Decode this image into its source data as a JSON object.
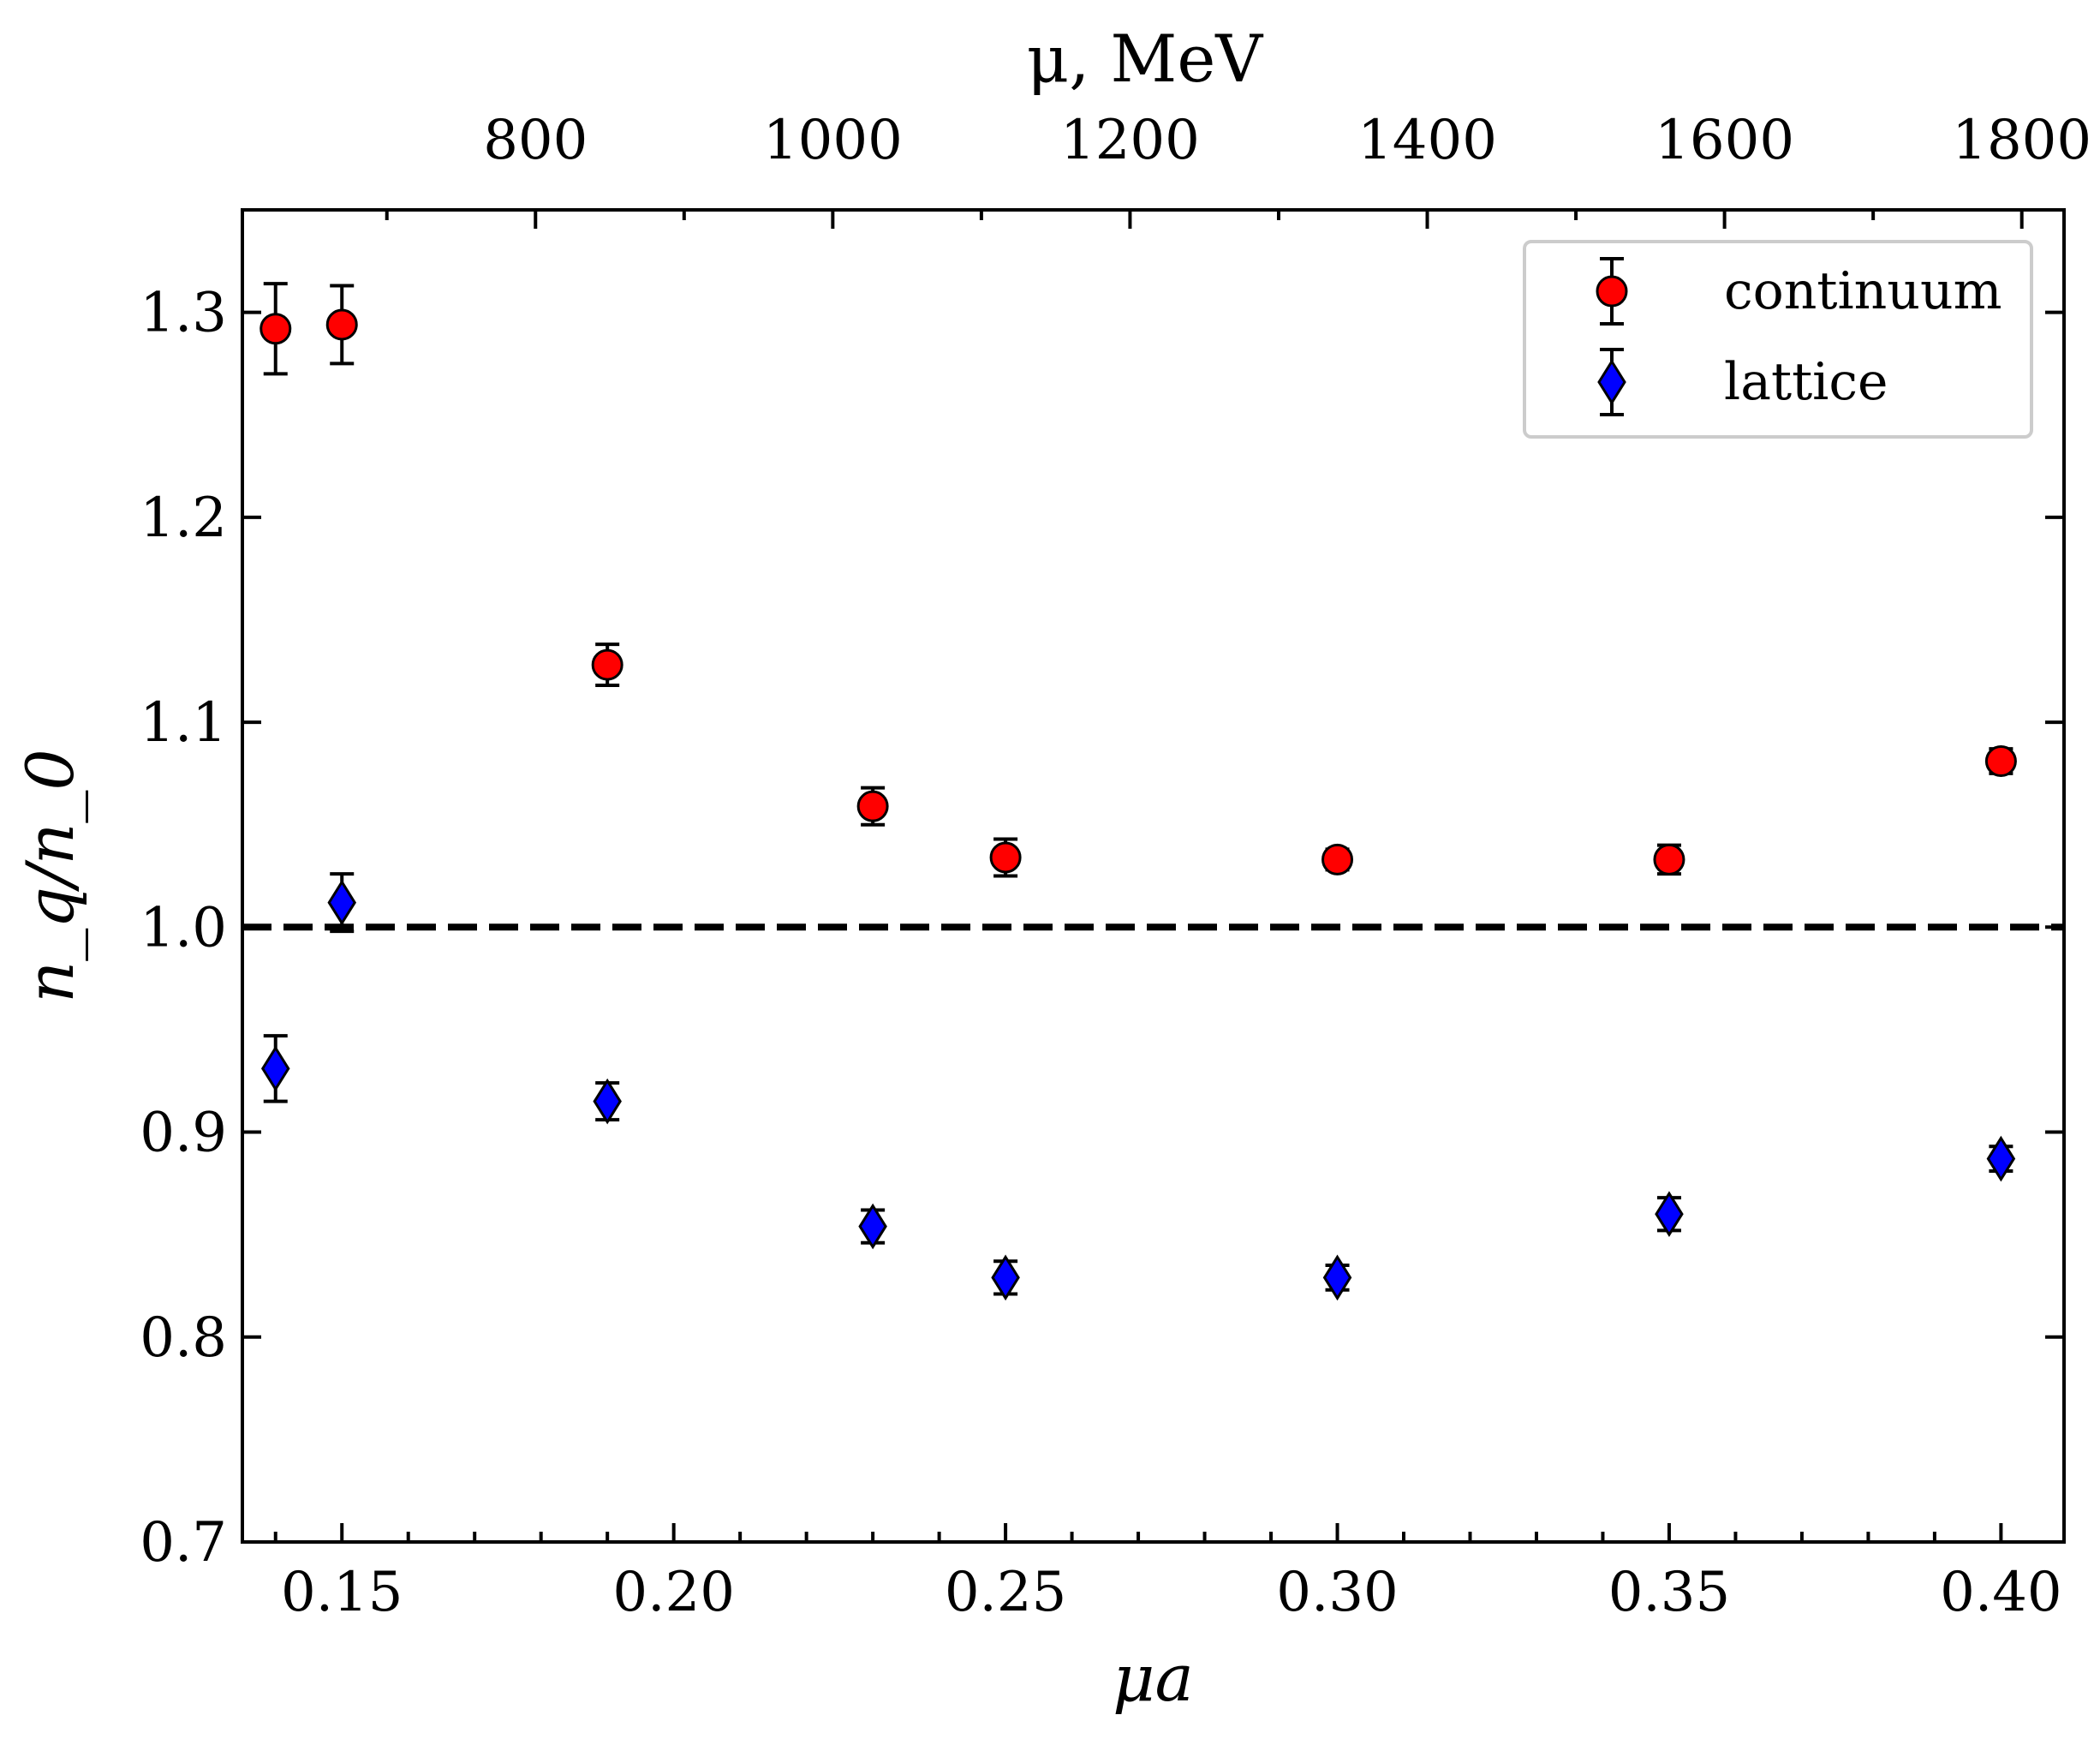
{
  "chart_data": {
    "type": "scatter",
    "title": "",
    "xlabel": "μa",
    "ylabel": "n_q/n_0",
    "top_xlabel": "μ, MeV",
    "xlim": [
      0.135,
      0.4095
    ],
    "ylim": [
      0.7,
      1.35
    ],
    "x_ticks": [
      0.15,
      0.2,
      0.25,
      0.3,
      0.35,
      0.4
    ],
    "x_tick_labels": [
      "0.15",
      "0.20",
      "0.25",
      "0.30",
      "0.35",
      "0.40"
    ],
    "y_ticks": [
      0.7,
      0.8,
      0.9,
      1.0,
      1.1,
      1.2,
      1.3
    ],
    "y_tick_labels": [
      "0.7",
      "0.8",
      "0.9",
      "1.0",
      "1.1",
      "1.2",
      "1.3"
    ],
    "top_axis": {
      "mev_per_unit_mua": 4465,
      "ticks": [
        800,
        1000,
        1200,
        1400,
        1600,
        1800
      ],
      "tick_labels": [
        "800",
        "1000",
        "1200",
        "1400",
        "1600",
        "1800"
      ]
    },
    "reference_line": {
      "y": 1.0,
      "style": "dashed"
    },
    "legend": {
      "position": "top-right",
      "entries": [
        "continuum",
        "lattice"
      ]
    },
    "series": [
      {
        "name": "continuum",
        "marker": "circle",
        "color": "#ff0000",
        "x": [
          0.14,
          0.15,
          0.19,
          0.23,
          0.25,
          0.3,
          0.35,
          0.4
        ],
        "y": [
          1.292,
          1.294,
          1.128,
          1.059,
          1.034,
          1.033,
          1.033,
          1.081
        ],
        "yerr": [
          0.022,
          0.019,
          0.01,
          0.009,
          0.009,
          0.005,
          0.007,
          0.006
        ]
      },
      {
        "name": "lattice",
        "marker": "diamond",
        "color": "#0000ff",
        "x": [
          0.14,
          0.15,
          0.19,
          0.23,
          0.25,
          0.3,
          0.35,
          0.4
        ],
        "y": [
          0.931,
          1.012,
          0.915,
          0.854,
          0.829,
          0.829,
          0.86,
          0.887
        ],
        "yerr": [
          0.016,
          0.014,
          0.009,
          0.008,
          0.008,
          0.006,
          0.008,
          0.006
        ]
      }
    ]
  }
}
